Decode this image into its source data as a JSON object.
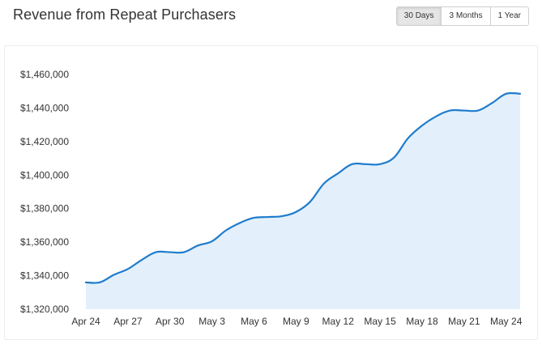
{
  "header": {
    "title": "Revenue from Repeat Purchasers"
  },
  "range_selector": {
    "options": [
      {
        "label": "30 Days",
        "active": true
      },
      {
        "label": "3 Months",
        "active": false
      },
      {
        "label": "1 Year",
        "active": false
      }
    ]
  },
  "chart_data": {
    "type": "area",
    "title": "Revenue from Repeat Purchasers",
    "xlabel": "",
    "ylabel": "",
    "x_ticks": [
      "Apr 24",
      "Apr 27",
      "Apr 30",
      "May 3",
      "May 6",
      "May 9",
      "May 12",
      "May 15",
      "May 18",
      "May 21",
      "May 24"
    ],
    "y_ticks": [
      "$1,320,000",
      "$1,340,000",
      "$1,360,000",
      "$1,380,000",
      "$1,400,000",
      "$1,420,000",
      "$1,440,000",
      "$1,460,000"
    ],
    "ylim": [
      1320000,
      1460000
    ],
    "grid": false,
    "colors": {
      "line": "#1f7ccc",
      "fill": "#e3f0fb"
    },
    "series": [
      {
        "x": [
          "Apr 24",
          "Apr 25",
          "Apr 26",
          "Apr 27",
          "Apr 28",
          "Apr 29",
          "Apr 30",
          "May 1",
          "May 2",
          "May 3",
          "May 4",
          "May 5",
          "May 6",
          "May 7",
          "May 8",
          "May 9",
          "May 10",
          "May 11",
          "May 12",
          "May 13",
          "May 14",
          "May 15",
          "May 16",
          "May 17",
          "May 18",
          "May 19",
          "May 20",
          "May 21",
          "May 22",
          "May 23",
          "May 24",
          "May 25"
        ],
        "values": [
          1336000,
          1336000,
          1340500,
          1344000,
          1349500,
          1354000,
          1354000,
          1354000,
          1358000,
          1360500,
          1367000,
          1371500,
          1374500,
          1375000,
          1375500,
          1378000,
          1384000,
          1395000,
          1401000,
          1406500,
          1406500,
          1406500,
          1410500,
          1422000,
          1429500,
          1435000,
          1438500,
          1438500,
          1438500,
          1443000,
          1448500,
          1448500
        ]
      }
    ]
  }
}
